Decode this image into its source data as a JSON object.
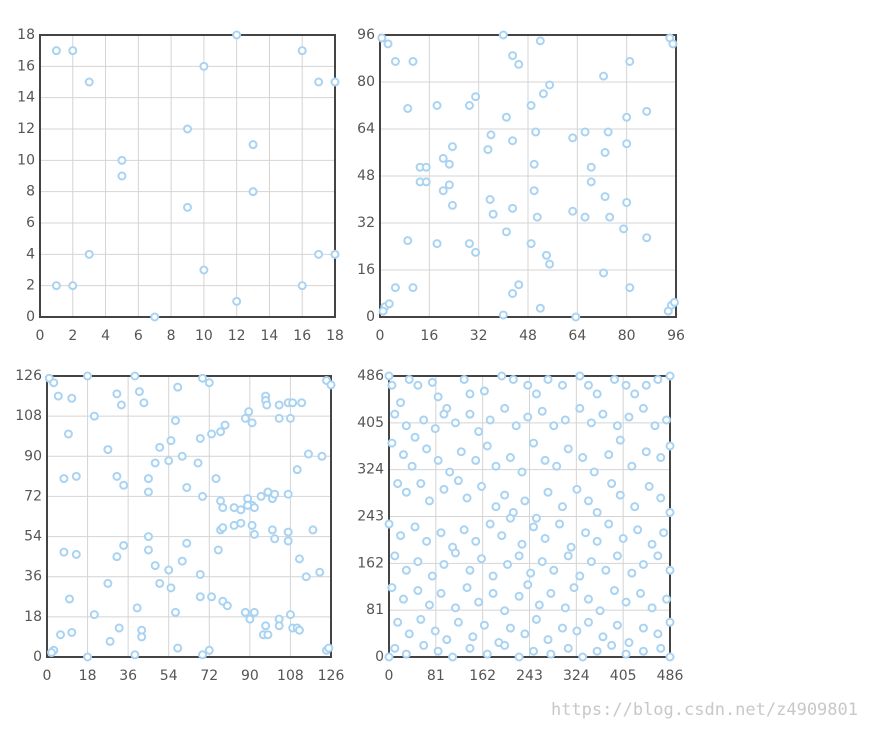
{
  "chart_data": [
    {
      "type": "scatter",
      "color": "#a9d3f2",
      "grid": true,
      "x": [
        1,
        2,
        3,
        1,
        2,
        3,
        5,
        5,
        7,
        9,
        9,
        10,
        10,
        12,
        12,
        13,
        13,
        16,
        16,
        17,
        17,
        18,
        18
      ],
      "values": [
        17,
        17,
        15,
        2,
        2,
        4,
        10,
        9,
        0,
        12,
        7,
        16,
        3,
        18,
        1,
        11,
        8,
        17,
        2,
        15,
        4,
        15,
        4
      ],
      "xlim": [
        0,
        18
      ],
      "ylim": [
        0,
        18
      ],
      "xticks": [
        0,
        2,
        4,
        6,
        8,
        10,
        12,
        14,
        16,
        18
      ],
      "yticks": [
        0,
        2,
        4,
        6,
        8,
        10,
        12,
        14,
        16,
        18
      ]
    },
    {
      "type": "scatter",
      "color": "#a9d3f2",
      "grid": true,
      "x": [
        0.6,
        2.6,
        5,
        10.7,
        9,
        18.5,
        29,
        31,
        40,
        43,
        45,
        52,
        49,
        55,
        53,
        41,
        36,
        35,
        43,
        50.5,
        50,
        50,
        51,
        49,
        54,
        55,
        52,
        13,
        15,
        13,
        15,
        20.5,
        22.5,
        20.5,
        22.5,
        23.5,
        23.5,
        35.7,
        36.7,
        43,
        41,
        18.5,
        29,
        31,
        9,
        5,
        10.7,
        1.6,
        3,
        45,
        43,
        40,
        63.5,
        62.5,
        66.5,
        74,
        68.5,
        73,
        68.5,
        73,
        80,
        80,
        81,
        72.5,
        86.5,
        79,
        80,
        86.5,
        62.5,
        66.5,
        74.5,
        72.5,
        81,
        94,
        95,
        94.5,
        93.5,
        95.5,
        1
      ],
      "values": [
        95,
        93,
        87,
        87,
        71,
        72,
        72,
        75,
        96,
        89,
        86,
        94,
        72,
        79,
        76,
        68,
        62,
        57,
        60,
        63,
        52,
        43,
        34,
        25,
        21,
        18,
        3,
        51,
        51,
        46,
        46,
        54,
        52,
        43,
        45,
        58,
        38,
        40,
        35,
        37,
        29,
        25,
        25,
        22,
        26,
        10,
        10,
        3.5,
        4.5,
        11,
        8,
        0.7,
        0,
        61,
        63,
        63,
        51,
        56,
        46,
        41,
        68,
        59,
        87,
        82,
        70,
        30,
        39,
        27,
        36,
        34,
        34,
        15,
        10,
        95,
        93,
        4,
        2,
        5,
        2
      ],
      "xlim": [
        0,
        96
      ],
      "ylim": [
        0,
        96
      ],
      "xticks": [
        0,
        16,
        32,
        48,
        64,
        80,
        96
      ],
      "yticks": [
        0,
        16,
        32,
        48,
        64,
        80,
        96
      ]
    },
    {
      "type": "scatter",
      "color": "#a9d3f2",
      "grid": true,
      "x": [
        1,
        3,
        5,
        11,
        9.5,
        18,
        21,
        27,
        31,
        33,
        39,
        41,
        43,
        31,
        34,
        45,
        45,
        48,
        50,
        55,
        54,
        60,
        58,
        57,
        62,
        67,
        68,
        73,
        77,
        79,
        69,
        72,
        69,
        75,
        77,
        78,
        83,
        86,
        89,
        91,
        95,
        98,
        100,
        107,
        88,
        89.5,
        91,
        97,
        97,
        97.5,
        103,
        107,
        109,
        113,
        108,
        103,
        116,
        122,
        111,
        124,
        126,
        7.5,
        13,
        7.5,
        13,
        10,
        6,
        11,
        3,
        2,
        18,
        21,
        28,
        27,
        32,
        31,
        34,
        40,
        39,
        42,
        42,
        45,
        45,
        48,
        50,
        54,
        55,
        57,
        58,
        60,
        62,
        68,
        68,
        69,
        72,
        73,
        76,
        77,
        78,
        78,
        80,
        83,
        86,
        89,
        88,
        90,
        92,
        91,
        92,
        92,
        97,
        96,
        98,
        100,
        101,
        101,
        103,
        103,
        108,
        109,
        111,
        112,
        107,
        112,
        115,
        118,
        121,
        124,
        125,
        107
      ],
      "values": [
        125,
        123,
        117,
        116,
        100,
        126,
        108,
        93,
        118,
        113,
        126,
        119,
        114,
        81,
        77,
        80,
        74,
        87,
        94,
        97,
        88,
        90,
        121,
        106,
        76,
        87,
        98,
        100,
        101,
        104,
        125,
        123,
        72,
        80,
        70,
        67,
        67,
        66,
        71,
        68,
        72,
        74,
        71,
        73,
        107,
        110,
        105,
        117,
        115,
        113,
        113,
        114,
        114,
        114,
        107,
        107,
        91,
        90,
        84,
        124,
        122,
        80,
        81,
        47,
        46,
        26,
        10,
        11,
        3,
        2,
        0,
        19,
        7,
        33,
        13,
        45,
        50,
        22,
        1,
        12,
        9,
        54,
        48,
        41,
        33,
        39,
        31,
        20,
        4,
        43,
        51,
        37,
        27,
        1,
        3,
        27,
        48,
        57,
        58,
        25,
        23,
        59,
        60,
        68,
        20,
        17,
        20,
        59,
        55,
        67,
        14,
        10,
        10,
        57,
        53,
        73,
        17,
        14,
        19,
        13,
        13,
        12,
        52,
        44,
        36,
        57,
        38,
        3,
        4,
        56
      ],
      "xlim": [
        0,
        126
      ],
      "ylim": [
        0,
        126
      ],
      "xticks": [
        0,
        18,
        36,
        54,
        72,
        90,
        108,
        126
      ],
      "yticks": [
        0,
        18,
        36,
        54,
        72,
        90,
        108,
        126
      ]
    },
    {
      "type": "scatter",
      "color": "#a9d3f2",
      "grid": true,
      "x": [
        0,
        5,
        20,
        35,
        50,
        75,
        85,
        100,
        130,
        140,
        165,
        195,
        215,
        240,
        255,
        275,
        300,
        330,
        345,
        360,
        390,
        410,
        425,
        445,
        465,
        486,
        10,
        30,
        45,
        60,
        80,
        95,
        115,
        140,
        155,
        175,
        200,
        220,
        240,
        265,
        285,
        305,
        330,
        350,
        370,
        395,
        415,
        440,
        460,
        480,
        5,
        25,
        40,
        65,
        85,
        105,
        125,
        150,
        170,
        185,
        210,
        230,
        250,
        270,
        290,
        310,
        335,
        355,
        380,
        400,
        420,
        445,
        470,
        486,
        15,
        30,
        55,
        70,
        95,
        120,
        135,
        160,
        185,
        200,
        215,
        235,
        255,
        275,
        300,
        325,
        345,
        360,
        385,
        400,
        425,
        450,
        470,
        486,
        0,
        20,
        45,
        65,
        90,
        110,
        130,
        150,
        175,
        195,
        210,
        230,
        250,
        270,
        295,
        315,
        340,
        360,
        380,
        405,
        430,
        455,
        475,
        10,
        30,
        50,
        75,
        95,
        115,
        140,
        160,
        180,
        205,
        225,
        245,
        265,
        285,
        310,
        330,
        350,
        375,
        395,
        420,
        440,
        465,
        486,
        5,
        25,
        50,
        70,
        90,
        115,
        135,
        155,
        180,
        200,
        225,
        240,
        260,
        280,
        305,
        320,
        345,
        365,
        390,
        410,
        435,
        455,
        480,
        15,
        35,
        55,
        80,
        100,
        120,
        145,
        165,
        190,
        210,
        235,
        255,
        275,
        300,
        325,
        345,
        370,
        395,
        415,
        440,
        465,
        486,
        0,
        10,
        30,
        60,
        85,
        110,
        140,
        170,
        200,
        225,
        250,
        280,
        310,
        335,
        360,
        385,
        410,
        440,
        470,
        486
      ],
      "values": [
        486,
        470,
        440,
        480,
        470,
        475,
        450,
        430,
        480,
        455,
        460,
        486,
        480,
        470,
        455,
        480,
        470,
        486,
        470,
        455,
        480,
        470,
        455,
        470,
        480,
        486,
        420,
        400,
        380,
        410,
        395,
        420,
        405,
        420,
        390,
        410,
        430,
        400,
        415,
        425,
        400,
        410,
        430,
        405,
        420,
        400,
        415,
        430,
        400,
        410,
        370,
        350,
        330,
        360,
        340,
        320,
        355,
        340,
        365,
        330,
        345,
        320,
        370,
        340,
        330,
        360,
        345,
        320,
        350,
        375,
        330,
        355,
        345,
        365,
        300,
        285,
        300,
        270,
        290,
        305,
        275,
        295,
        260,
        280,
        250,
        270,
        240,
        285,
        260,
        290,
        270,
        250,
        300,
        280,
        260,
        295,
        275,
        250,
        230,
        210,
        225,
        200,
        215,
        190,
        220,
        200,
        230,
        210,
        240,
        195,
        225,
        205,
        230,
        190,
        215,
        200,
        230,
        205,
        220,
        195,
        215,
        175,
        150,
        165,
        140,
        160,
        180,
        150,
        170,
        140,
        160,
        175,
        145,
        165,
        150,
        175,
        140,
        165,
        150,
        175,
        145,
        160,
        175,
        150,
        120,
        100,
        115,
        90,
        110,
        85,
        120,
        95,
        110,
        80,
        105,
        125,
        90,
        110,
        85,
        120,
        100,
        80,
        115,
        95,
        110,
        85,
        100,
        60,
        40,
        65,
        45,
        30,
        60,
        35,
        55,
        25,
        50,
        40,
        65,
        30,
        50,
        45,
        60,
        35,
        55,
        25,
        50,
        40,
        60,
        0,
        15,
        5,
        20,
        10,
        0,
        15,
        5,
        20,
        0,
        10,
        5,
        15,
        0,
        10,
        20,
        5,
        10,
        15,
        0
      ],
      "xlim": [
        0,
        486
      ],
      "ylim": [
        0,
        486
      ],
      "xticks": [
        0,
        81,
        162,
        243,
        324,
        405,
        486
      ],
      "yticks": [
        0,
        81,
        162,
        243,
        324,
        405,
        486
      ]
    }
  ],
  "watermark": "https://blog.csdn.net/z4909801"
}
